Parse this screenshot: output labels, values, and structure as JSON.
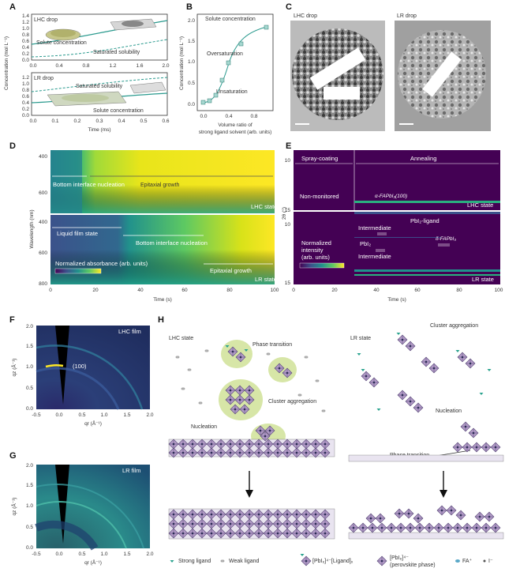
{
  "panels": {
    "A": "A",
    "B": "B",
    "C": "C",
    "D": "D",
    "E": "E",
    "F": "F",
    "G": "G",
    "H": "H"
  },
  "panelA": {
    "top_label": "LHC drop",
    "bottom_label": "LR drop",
    "ylabel": "Concentration (mol L⁻¹)",
    "xlabel": "Time (ms)",
    "top_yticks": [
      "0.0",
      "0.2",
      "0.4",
      "0.6",
      "0.8",
      "1.0",
      "1.2",
      "1.4"
    ],
    "top_xticks": [
      "0.0",
      "0.4",
      "0.8",
      "1.2",
      "1.6",
      "2.0"
    ],
    "bottom_yticks": [
      "0.0",
      "0.2",
      "0.4",
      "0.6",
      "0.8",
      "1.0",
      "1.2"
    ],
    "bottom_xticks": [
      "0.0",
      "0.1",
      "0.2",
      "0.3",
      "0.4",
      "0.5",
      "0.6"
    ],
    "top_solute": "Solute concentration",
    "top_saturated": "Saturated solubility",
    "bottom_saturated": "Saturated solubility",
    "bottom_solute": "Solute concentration"
  },
  "panelB": {
    "ylabel": "Concentration (mol L⁻¹)",
    "xlabel1": "Volume ratio of",
    "xlabel2": "strong ligand solvent (arb. units)",
    "xticks": [
      "0.0",
      "0.4",
      "0.8"
    ],
    "yticks": [
      "0.0",
      "0.5",
      "1.0",
      "1.5",
      "2.0"
    ],
    "label_solute": "Solute concentration",
    "label_over": "Oversaturation",
    "label_under": "Unsaturation"
  },
  "panelC": {
    "left": "LHC drop",
    "right": "LR drop"
  },
  "panelD": {
    "ylabel": "Wavelength (nm)",
    "xlabel": "Time (s)",
    "xticks": [
      "0",
      "20",
      "40",
      "60",
      "80",
      "100"
    ],
    "yticks_top": [
      "400",
      "600"
    ],
    "yticks_bottom": [
      "400",
      "600",
      "800"
    ],
    "top_bottom_interface": "Bottom interface nucleation",
    "top_epitaxial": "Epitaxial growth",
    "top_state": "LHC state",
    "liquid_film": "Liquid film state",
    "bottom_interface": "Bottom interface nucleation",
    "bottom_epitaxial": "Epitaxial growth",
    "bottom_state": "LR state",
    "normalized": "Normalized absorbance (arb. units)"
  },
  "panelE": {
    "ylabel": "2θ (°)",
    "xlabel": "Time (s)",
    "xticks": [
      "0",
      "20",
      "40",
      "60",
      "80",
      "100"
    ],
    "yticks_top": [
      "10",
      "15"
    ],
    "yticks_bottom": [
      "10",
      "15"
    ],
    "spray": "Spray-coating",
    "annealing": "Annealing",
    "nonmonitored": "Non-monitored",
    "alpha": "α-FAPbI₃(100)",
    "top_state": "LHC state",
    "pbi2_ligand": "PbI₂-ligand",
    "intermediate1": "Intermediate",
    "pbi2": "PbI₂",
    "intermediate2": "Intermediate",
    "delta": "δ-FAPbI₃",
    "normalized1": "Normalized",
    "normalized2": "intensity",
    "normalized3": "(arb. units)",
    "bottom_state": "LR state"
  },
  "panelF": {
    "title": "LHC film",
    "peak": "(100)",
    "ylabel": "qz (Å⁻¹)",
    "xlabel": "qr (Å⁻¹)",
    "xticks": [
      "-0.5",
      "0.0",
      "0.5",
      "1.0",
      "1.5",
      "2.0"
    ],
    "yticks": [
      "0.0",
      "0.5",
      "1.0",
      "1.5",
      "2.0"
    ]
  },
  "panelG": {
    "title": "LR film",
    "ylabel": "qz (Å⁻¹)",
    "xlabel": "qr (Å⁻¹)",
    "xticks": [
      "-0.5",
      "0.0",
      "0.5",
      "1.0",
      "1.5",
      "2.0"
    ],
    "yticks": [
      "0.0",
      "0.5",
      "1.0",
      "1.5",
      "2.0"
    ]
  },
  "panelH": {
    "lhc_state": "LHC state",
    "phase_transition": "Phase transition",
    "cluster_agg": "Cluster aggregation",
    "nucleation": "Nucleation",
    "lr_state": "LR state",
    "lr_cluster": "Cluster aggregation",
    "lr_nucleation": "Nucleation",
    "lr_phase": "Phase transition",
    "legend_strong": "Strong ligand",
    "legend_weak": "Weak ligand",
    "legend_pbi": "[PbI₆]⁴⁻[Ligand]ₓ",
    "legend_perov1": "[PbI₆]⁴⁻",
    "legend_perov2": "(perovskite phase)",
    "legend_fa": "FA⁺",
    "legend_i": "I⁻"
  },
  "colors": {
    "teal": "#2a9a8e",
    "viridis_dark": "#440154",
    "viridis_mid": "#21918c",
    "viridis_yellow": "#fde725",
    "blob": "#d7e6a7"
  }
}
